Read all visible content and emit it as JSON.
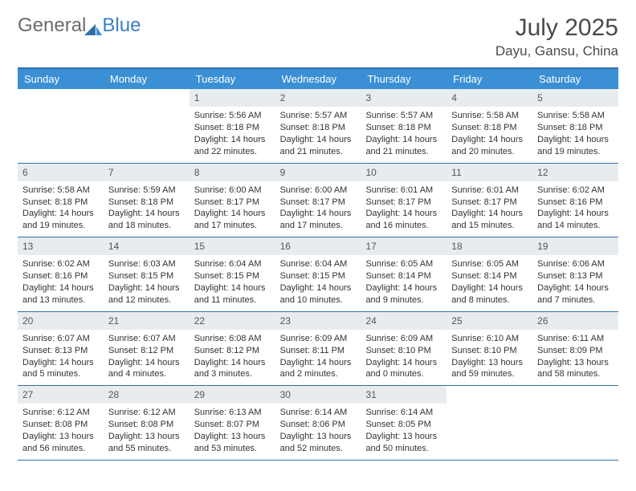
{
  "logo": {
    "text1": "General",
    "text2": "Blue"
  },
  "title": "July 2025",
  "location": "Dayu, Gansu, China",
  "colors": {
    "header_bg": "#3b8fd4",
    "header_text": "#ffffff",
    "border": "#2f6fa8",
    "daynum_bg": "#e9ecef",
    "text": "#333333",
    "logo_gray": "#6b6b6b",
    "logo_blue": "#3b7fc4"
  },
  "day_names": [
    "Sunday",
    "Monday",
    "Tuesday",
    "Wednesday",
    "Thursday",
    "Friday",
    "Saturday"
  ],
  "weeks": [
    [
      {
        "n": "",
        "sr": "",
        "ss": "",
        "dl": ""
      },
      {
        "n": "",
        "sr": "",
        "ss": "",
        "dl": ""
      },
      {
        "n": "1",
        "sr": "Sunrise: 5:56 AM",
        "ss": "Sunset: 8:18 PM",
        "dl": "Daylight: 14 hours and 22 minutes."
      },
      {
        "n": "2",
        "sr": "Sunrise: 5:57 AM",
        "ss": "Sunset: 8:18 PM",
        "dl": "Daylight: 14 hours and 21 minutes."
      },
      {
        "n": "3",
        "sr": "Sunrise: 5:57 AM",
        "ss": "Sunset: 8:18 PM",
        "dl": "Daylight: 14 hours and 21 minutes."
      },
      {
        "n": "4",
        "sr": "Sunrise: 5:58 AM",
        "ss": "Sunset: 8:18 PM",
        "dl": "Daylight: 14 hours and 20 minutes."
      },
      {
        "n": "5",
        "sr": "Sunrise: 5:58 AM",
        "ss": "Sunset: 8:18 PM",
        "dl": "Daylight: 14 hours and 19 minutes."
      }
    ],
    [
      {
        "n": "6",
        "sr": "Sunrise: 5:58 AM",
        "ss": "Sunset: 8:18 PM",
        "dl": "Daylight: 14 hours and 19 minutes."
      },
      {
        "n": "7",
        "sr": "Sunrise: 5:59 AM",
        "ss": "Sunset: 8:18 PM",
        "dl": "Daylight: 14 hours and 18 minutes."
      },
      {
        "n": "8",
        "sr": "Sunrise: 6:00 AM",
        "ss": "Sunset: 8:17 PM",
        "dl": "Daylight: 14 hours and 17 minutes."
      },
      {
        "n": "9",
        "sr": "Sunrise: 6:00 AM",
        "ss": "Sunset: 8:17 PM",
        "dl": "Daylight: 14 hours and 17 minutes."
      },
      {
        "n": "10",
        "sr": "Sunrise: 6:01 AM",
        "ss": "Sunset: 8:17 PM",
        "dl": "Daylight: 14 hours and 16 minutes."
      },
      {
        "n": "11",
        "sr": "Sunrise: 6:01 AM",
        "ss": "Sunset: 8:17 PM",
        "dl": "Daylight: 14 hours and 15 minutes."
      },
      {
        "n": "12",
        "sr": "Sunrise: 6:02 AM",
        "ss": "Sunset: 8:16 PM",
        "dl": "Daylight: 14 hours and 14 minutes."
      }
    ],
    [
      {
        "n": "13",
        "sr": "Sunrise: 6:02 AM",
        "ss": "Sunset: 8:16 PM",
        "dl": "Daylight: 14 hours and 13 minutes."
      },
      {
        "n": "14",
        "sr": "Sunrise: 6:03 AM",
        "ss": "Sunset: 8:15 PM",
        "dl": "Daylight: 14 hours and 12 minutes."
      },
      {
        "n": "15",
        "sr": "Sunrise: 6:04 AM",
        "ss": "Sunset: 8:15 PM",
        "dl": "Daylight: 14 hours and 11 minutes."
      },
      {
        "n": "16",
        "sr": "Sunrise: 6:04 AM",
        "ss": "Sunset: 8:15 PM",
        "dl": "Daylight: 14 hours and 10 minutes."
      },
      {
        "n": "17",
        "sr": "Sunrise: 6:05 AM",
        "ss": "Sunset: 8:14 PM",
        "dl": "Daylight: 14 hours and 9 minutes."
      },
      {
        "n": "18",
        "sr": "Sunrise: 6:05 AM",
        "ss": "Sunset: 8:14 PM",
        "dl": "Daylight: 14 hours and 8 minutes."
      },
      {
        "n": "19",
        "sr": "Sunrise: 6:06 AM",
        "ss": "Sunset: 8:13 PM",
        "dl": "Daylight: 14 hours and 7 minutes."
      }
    ],
    [
      {
        "n": "20",
        "sr": "Sunrise: 6:07 AM",
        "ss": "Sunset: 8:13 PM",
        "dl": "Daylight: 14 hours and 5 minutes."
      },
      {
        "n": "21",
        "sr": "Sunrise: 6:07 AM",
        "ss": "Sunset: 8:12 PM",
        "dl": "Daylight: 14 hours and 4 minutes."
      },
      {
        "n": "22",
        "sr": "Sunrise: 6:08 AM",
        "ss": "Sunset: 8:12 PM",
        "dl": "Daylight: 14 hours and 3 minutes."
      },
      {
        "n": "23",
        "sr": "Sunrise: 6:09 AM",
        "ss": "Sunset: 8:11 PM",
        "dl": "Daylight: 14 hours and 2 minutes."
      },
      {
        "n": "24",
        "sr": "Sunrise: 6:09 AM",
        "ss": "Sunset: 8:10 PM",
        "dl": "Daylight: 14 hours and 0 minutes."
      },
      {
        "n": "25",
        "sr": "Sunrise: 6:10 AM",
        "ss": "Sunset: 8:10 PM",
        "dl": "Daylight: 13 hours and 59 minutes."
      },
      {
        "n": "26",
        "sr": "Sunrise: 6:11 AM",
        "ss": "Sunset: 8:09 PM",
        "dl": "Daylight: 13 hours and 58 minutes."
      }
    ],
    [
      {
        "n": "27",
        "sr": "Sunrise: 6:12 AM",
        "ss": "Sunset: 8:08 PM",
        "dl": "Daylight: 13 hours and 56 minutes."
      },
      {
        "n": "28",
        "sr": "Sunrise: 6:12 AM",
        "ss": "Sunset: 8:08 PM",
        "dl": "Daylight: 13 hours and 55 minutes."
      },
      {
        "n": "29",
        "sr": "Sunrise: 6:13 AM",
        "ss": "Sunset: 8:07 PM",
        "dl": "Daylight: 13 hours and 53 minutes."
      },
      {
        "n": "30",
        "sr": "Sunrise: 6:14 AM",
        "ss": "Sunset: 8:06 PM",
        "dl": "Daylight: 13 hours and 52 minutes."
      },
      {
        "n": "31",
        "sr": "Sunrise: 6:14 AM",
        "ss": "Sunset: 8:05 PM",
        "dl": "Daylight: 13 hours and 50 minutes."
      },
      {
        "n": "",
        "sr": "",
        "ss": "",
        "dl": ""
      },
      {
        "n": "",
        "sr": "",
        "ss": "",
        "dl": ""
      }
    ]
  ]
}
